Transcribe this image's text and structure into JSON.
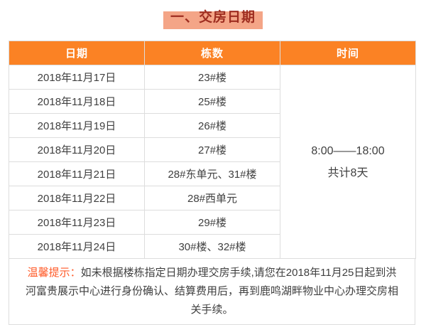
{
  "title": "一、交房日期",
  "table": {
    "headers": [
      "日期",
      "栋数",
      "时间"
    ],
    "rows": [
      {
        "date": "2018年11月17日",
        "buildings": "23#楼"
      },
      {
        "date": "2018年11月18日",
        "buildings": "25#楼"
      },
      {
        "date": "2018年11月19日",
        "buildings": "26#楼"
      },
      {
        "date": "2018年11月20日",
        "buildings": "27#楼"
      },
      {
        "date": "2018年11月21日",
        "buildings": "28#东单元、31#楼"
      },
      {
        "date": "2018年11月22日",
        "buildings": "28#西单元"
      },
      {
        "date": "2018年11月23日",
        "buildings": "29#楼"
      },
      {
        "date": "2018年11月24日",
        "buildings": "30#楼、32#楼"
      }
    ],
    "time": {
      "range": "8:00——18:00",
      "total": "共计8天"
    }
  },
  "note": {
    "label": "温馨提示：",
    "text": "如未根据楼栋指定日期办理交房手续,请您在2018年11月25日起到洪河富贵展示中心进行身份确认、结算费用后，再到鹿鸣湖畔物业中心办理交房相关手续。"
  },
  "colors": {
    "header_bg": "#FB8224",
    "title_bg": "#F4A587",
    "title_text": "#9E2D20",
    "note_highlight": "#FF5A28",
    "border": "#DDDDDD",
    "body_text": "#3F3F3F"
  }
}
